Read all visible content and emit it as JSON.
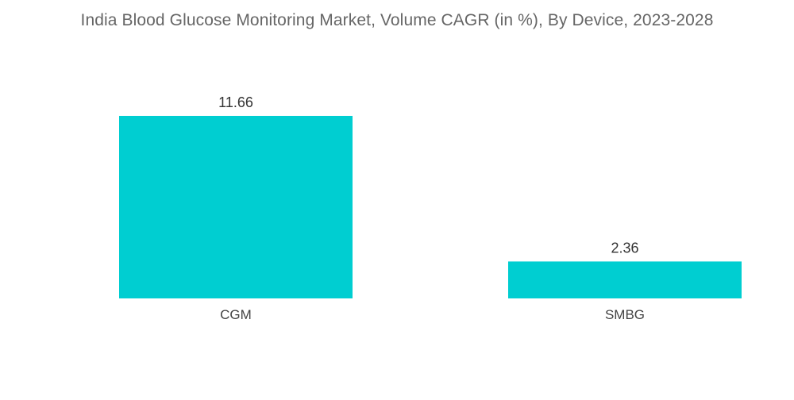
{
  "chart_data": {
    "type": "bar",
    "title": "India Blood Glucose Monitoring Market, Volume CAGR (in %), By Device, 2023-2028",
    "xlabel": "",
    "ylabel": "",
    "categories": [
      "CGM",
      "SMBG"
    ],
    "values": [
      11.66,
      2.36
    ],
    "value_labels": [
      "11.66",
      "2.36"
    ],
    "ylim": [
      0,
      11.66
    ],
    "grid": false,
    "legend": "none",
    "colors": {
      "bar": "#00CED1",
      "title": "#666666",
      "label": "#333333"
    }
  }
}
